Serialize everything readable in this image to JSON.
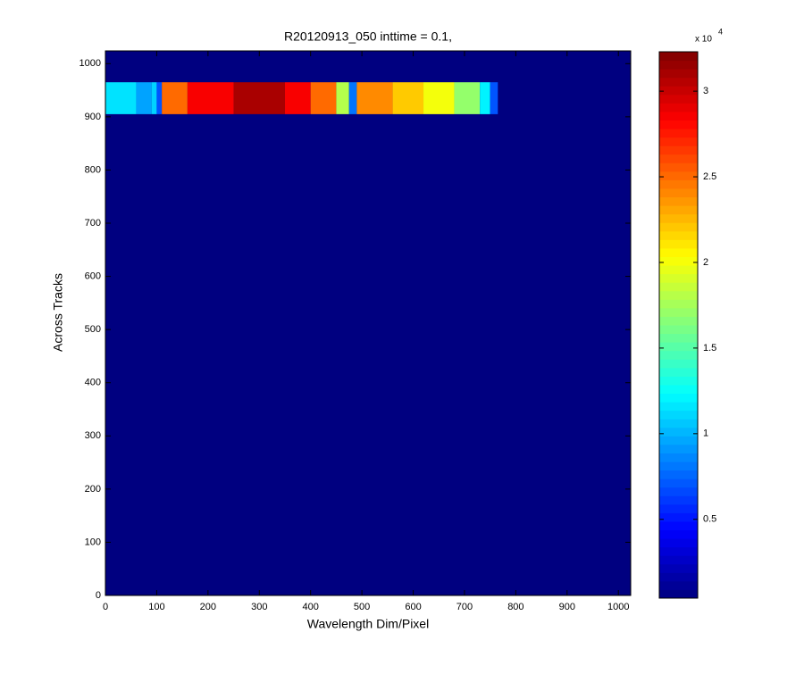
{
  "chart_data": {
    "type": "heatmap",
    "title": "R20120913_050 inttime = 0.1,",
    "xlabel": "Wavelength Dim/Pixel",
    "ylabel": "Across Tracks",
    "xlim": [
      0,
      1024
    ],
    "ylim": [
      0,
      1024
    ],
    "xticks": [
      0,
      100,
      200,
      300,
      400,
      500,
      600,
      700,
      800,
      900,
      1000
    ],
    "yticks": [
      0,
      100,
      200,
      300,
      400,
      500,
      600,
      700,
      800,
      900,
      1000
    ],
    "colormap": "jet",
    "clim": [
      400,
      32300
    ],
    "colorbar_ticks": [
      {
        "value": 5000,
        "label": "0.5"
      },
      {
        "value": 10000,
        "label": "1"
      },
      {
        "value": 15000,
        "label": "1.5"
      },
      {
        "value": 20000,
        "label": "2"
      },
      {
        "value": 25000,
        "label": "2.5"
      },
      {
        "value": 30000,
        "label": "3"
      }
    ],
    "colorbar_multiplier": "x 10",
    "colorbar_exponent": "4",
    "background": 400,
    "y_edges": [
      905,
      965
    ],
    "x_edges": [
      0,
      60,
      90,
      100,
      110,
      160,
      250,
      350,
      400,
      450,
      475,
      490,
      560,
      620,
      680,
      730,
      750,
      765
    ],
    "values": [
      11500,
      9500,
      11000,
      7000,
      25000,
      28500,
      31000,
      28500,
      25000,
      18000,
      8000,
      24000,
      22000,
      20000,
      17000,
      12000,
      7000
    ]
  }
}
